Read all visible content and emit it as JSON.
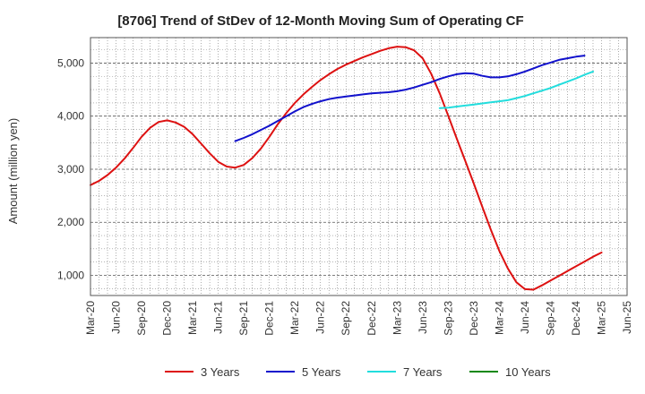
{
  "chart_data": {
    "type": "line",
    "title": "[8706]  Trend of StDev of 12-Month Moving Sum of Operating CF",
    "xlabel": "",
    "ylabel": "Amount (million yen)",
    "x_ticks": [
      "Mar-20",
      "Jun-20",
      "Sep-20",
      "Dec-20",
      "Mar-21",
      "Jun-21",
      "Sep-21",
      "Dec-21",
      "Mar-22",
      "Jun-22",
      "Sep-22",
      "Dec-22",
      "Mar-23",
      "Jun-23",
      "Sep-23",
      "Dec-23",
      "Mar-24",
      "Jun-24",
      "Sep-24",
      "Dec-24",
      "Mar-25",
      "Jun-25"
    ],
    "y_ticks": [
      1000,
      2000,
      3000,
      4000,
      5000
    ],
    "y_tick_labels": [
      "1,000",
      "2,000",
      "3,000",
      "4,000",
      "5,000"
    ],
    "ylim": [
      620,
      5480
    ],
    "grid": true,
    "legend_position": "bottom",
    "series": [
      {
        "name": "3 Years",
        "color": "#dd1111",
        "values": [
          [
            0,
            2700
          ],
          [
            1,
            2780
          ],
          [
            2,
            2890
          ],
          [
            3,
            3030
          ],
          [
            4,
            3200
          ],
          [
            5,
            3400
          ],
          [
            6,
            3610
          ],
          [
            7,
            3780
          ],
          [
            8,
            3890
          ],
          [
            9,
            3920
          ],
          [
            10,
            3880
          ],
          [
            11,
            3800
          ],
          [
            12,
            3660
          ],
          [
            13,
            3480
          ],
          [
            14,
            3300
          ],
          [
            15,
            3140
          ],
          [
            16,
            3050
          ],
          [
            17,
            3030
          ],
          [
            18,
            3080
          ],
          [
            19,
            3210
          ],
          [
            20,
            3390
          ],
          [
            21,
            3610
          ],
          [
            22,
            3850
          ],
          [
            23,
            4060
          ],
          [
            24,
            4250
          ],
          [
            25,
            4410
          ],
          [
            26,
            4550
          ],
          [
            27,
            4680
          ],
          [
            28,
            4790
          ],
          [
            29,
            4890
          ],
          [
            30,
            4970
          ],
          [
            31,
            5040
          ],
          [
            32,
            5110
          ],
          [
            33,
            5170
          ],
          [
            34,
            5230
          ],
          [
            35,
            5280
          ],
          [
            36,
            5310
          ],
          [
            37,
            5300
          ],
          [
            38,
            5240
          ],
          [
            39,
            5090
          ],
          [
            40,
            4800
          ],
          [
            41,
            4430
          ],
          [
            42,
            4010
          ],
          [
            43,
            3580
          ],
          [
            44,
            3160
          ],
          [
            45,
            2730
          ],
          [
            46,
            2290
          ],
          [
            47,
            1860
          ],
          [
            48,
            1460
          ],
          [
            49,
            1130
          ],
          [
            50,
            870
          ],
          [
            51,
            740
          ],
          [
            52,
            730
          ],
          [
            53,
            810
          ],
          [
            54,
            900
          ],
          [
            55,
            990
          ],
          [
            56,
            1080
          ],
          [
            57,
            1170
          ],
          [
            58,
            1260
          ],
          [
            59,
            1350
          ],
          [
            60,
            1430
          ]
        ]
      },
      {
        "name": "5 Years",
        "color": "#1111cc",
        "values": [
          [
            17,
            3530
          ],
          [
            18,
            3590
          ],
          [
            19,
            3660
          ],
          [
            20,
            3740
          ],
          [
            21,
            3820
          ],
          [
            22,
            3910
          ],
          [
            23,
            4000
          ],
          [
            24,
            4090
          ],
          [
            25,
            4170
          ],
          [
            26,
            4230
          ],
          [
            27,
            4280
          ],
          [
            28,
            4320
          ],
          [
            29,
            4350
          ],
          [
            30,
            4370
          ],
          [
            31,
            4390
          ],
          [
            32,
            4410
          ],
          [
            33,
            4430
          ],
          [
            34,
            4440
          ],
          [
            35,
            4450
          ],
          [
            36,
            4470
          ],
          [
            37,
            4500
          ],
          [
            38,
            4540
          ],
          [
            39,
            4590
          ],
          [
            40,
            4640
          ],
          [
            41,
            4700
          ],
          [
            42,
            4750
          ],
          [
            43,
            4790
          ],
          [
            44,
            4810
          ],
          [
            45,
            4800
          ],
          [
            46,
            4760
          ],
          [
            47,
            4730
          ],
          [
            48,
            4730
          ],
          [
            49,
            4750
          ],
          [
            50,
            4790
          ],
          [
            51,
            4840
          ],
          [
            52,
            4900
          ],
          [
            53,
            4960
          ],
          [
            54,
            5010
          ],
          [
            55,
            5060
          ],
          [
            56,
            5090
          ],
          [
            57,
            5120
          ],
          [
            58,
            5140
          ]
        ]
      },
      {
        "name": "7 Years",
        "color": "#22dddd",
        "values": [
          [
            41,
            4150
          ],
          [
            42,
            4160
          ],
          [
            43,
            4180
          ],
          [
            44,
            4200
          ],
          [
            45,
            4220
          ],
          [
            46,
            4240
          ],
          [
            47,
            4260
          ],
          [
            48,
            4280
          ],
          [
            49,
            4300
          ],
          [
            50,
            4340
          ],
          [
            51,
            4380
          ],
          [
            52,
            4430
          ],
          [
            53,
            4480
          ],
          [
            54,
            4530
          ],
          [
            55,
            4590
          ],
          [
            56,
            4650
          ],
          [
            57,
            4710
          ],
          [
            58,
            4780
          ],
          [
            59,
            4840
          ]
        ]
      },
      {
        "name": "10 Years",
        "color": "#118811",
        "values": []
      }
    ]
  }
}
